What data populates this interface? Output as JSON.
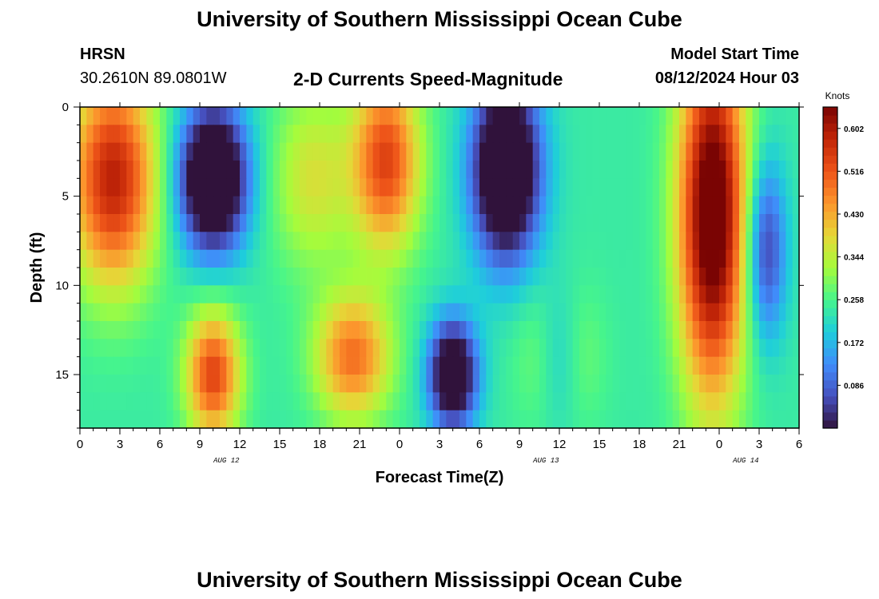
{
  "header": {
    "title": "University of Southern Mississippi Ocean Cube",
    "station": "HRSN",
    "coords": "30.2610N  89.0801W",
    "subtitle": "2-D Currents Speed-Magnitude",
    "model_label": "Model Start Time",
    "model_time": "08/12/2024 Hour 03"
  },
  "footer": {
    "title": "University of Southern Mississippi Ocean Cube"
  },
  "chart_data": {
    "type": "heatmap",
    "title": "2-D Currents Speed-Magnitude",
    "xlabel": "Forecast Time(Z)",
    "ylabel": "Depth (ft)",
    "x_hours_since_start": [
      0,
      54
    ],
    "xlim": [
      0,
      54
    ],
    "ylim": [
      18,
      0
    ],
    "x_tick_labels": [
      "0",
      "3",
      "6",
      "9",
      "12",
      "15",
      "18",
      "21",
      "0",
      "3",
      "6",
      "9",
      "12",
      "15",
      "18",
      "21",
      "0",
      "3",
      "6"
    ],
    "y_ticks": [
      0,
      5,
      10,
      15
    ],
    "date_labels": [
      {
        "label": "AUG 12",
        "hour": 11
      },
      {
        "label": "AUG 13",
        "hour": 35
      },
      {
        "label": "AUG 14",
        "hour": 50
      }
    ],
    "colorbar": {
      "unit": "Knots",
      "min": 0.0,
      "max": 0.645,
      "ticks": [
        "0.602",
        "0.516",
        "0.430",
        "0.344",
        "0.258",
        "0.172",
        "0.086"
      ],
      "tick_values": [
        0.602,
        0.516,
        0.43,
        0.344,
        0.258,
        0.172,
        0.086
      ]
    },
    "features": [
      {
        "hour": 2.5,
        "depth": 4,
        "wx": 3.2,
        "wd": 6,
        "value": 0.35
      },
      {
        "hour": 10,
        "depth": 4,
        "wx": 2.5,
        "wd": 4,
        "value": -0.42
      },
      {
        "hour": 17.5,
        "depth": 4,
        "wx": 3,
        "wd": 5,
        "value": 0.13
      },
      {
        "hour": 23,
        "depth": 3,
        "wx": 2.5,
        "wd": 5,
        "value": 0.3
      },
      {
        "hour": 32,
        "depth": 3.5,
        "wx": 2.5,
        "wd": 5,
        "value": -0.42
      },
      {
        "hour": 10,
        "depth": 15,
        "wx": 2,
        "wd": 3.5,
        "value": 0.3
      },
      {
        "hour": 20.5,
        "depth": 14,
        "wx": 2.8,
        "wd": 3.5,
        "value": 0.25
      },
      {
        "hour": 28,
        "depth": 15,
        "wx": 1.8,
        "wd": 3,
        "value": -0.35
      },
      {
        "hour": 36,
        "depth": 14,
        "wx": 1.8,
        "wd": 4,
        "value": -0.2
      },
      {
        "hour": 36,
        "depth": 14,
        "wx": 2.4,
        "wd": 4,
        "value": 0.18
      },
      {
        "hour": 47.5,
        "depth": 6,
        "wx": 2.5,
        "wd": 10,
        "value": 0.47
      },
      {
        "hour": 51.5,
        "depth": 8,
        "wx": 1.5,
        "wd": 5,
        "value": -0.2
      }
    ]
  }
}
